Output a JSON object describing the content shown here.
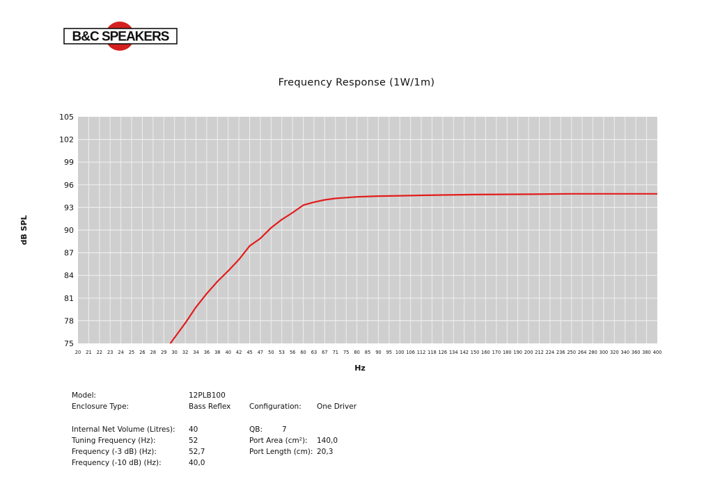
{
  "logo_text": "B&C SPEAKERS",
  "colors": {
    "curve": "#e31b1b",
    "plot_bg": "#cfcfcf",
    "grid": "#eeeeee",
    "logo_red": "#d42020"
  },
  "chart_data": {
    "type": "line",
    "title": "Frequency Response (1W/1m)",
    "xlabel": "Hz",
    "ylabel": "dB SPL",
    "x_scale": "log",
    "grid": true,
    "ylim": [
      75,
      105
    ],
    "yticks": [
      "75",
      "78",
      "81",
      "84",
      "87",
      "90",
      "93",
      "96",
      "99",
      "102",
      "105"
    ],
    "xticks": [
      "20",
      "21",
      "22",
      "23",
      "24",
      "25",
      "26",
      "28",
      "29",
      "30",
      "32",
      "34",
      "36",
      "38",
      "40",
      "42",
      "45",
      "47",
      "50",
      "53",
      "56",
      "60",
      "63",
      "67",
      "71",
      "75",
      "80",
      "85",
      "90",
      "95",
      "100",
      "106",
      "112",
      "118",
      "126",
      "134",
      "142",
      "150",
      "160",
      "170",
      "180",
      "190",
      "200",
      "212",
      "224",
      "236",
      "250",
      "264",
      "280",
      "300",
      "320",
      "340",
      "360",
      "380",
      "400"
    ],
    "series": [
      {
        "x": [
          29.6,
          32,
          34,
          36,
          38,
          40,
          42,
          45,
          47,
          50,
          53,
          56,
          60,
          63,
          67,
          71,
          75,
          80,
          85,
          90,
          100,
          112,
          126,
          150,
          200,
          250,
          300,
          400
        ],
        "y": [
          75,
          77.7,
          79.8,
          81.6,
          83.2,
          84.6,
          86.1,
          87.9,
          88.9,
          90.3,
          91.4,
          92.3,
          93.3,
          93.7,
          94.0,
          94.2,
          94.3,
          94.4,
          94.45,
          94.5,
          94.55,
          94.6,
          94.65,
          94.7,
          94.75,
          94.8,
          94.8,
          94.8
        ]
      }
    ]
  },
  "specs": {
    "model_label": "Model:",
    "model_value": "12PLB100",
    "enclosure_label": "Enclosure Type:",
    "enclosure_value": "Bass Reflex",
    "config_label": "Configuration:",
    "config_value": "One Driver",
    "volume_label": "Internal Net Volume (Litres):",
    "volume_value": "40",
    "qb_label": "QB:",
    "qb_value": "7",
    "tuning_label": "Tuning Frequency (Hz):",
    "tuning_value": "52",
    "port_area_label": "Port Area (cm²):",
    "port_area_value": "140,0",
    "f3_label": "Frequency (-3 dB) (Hz):",
    "f3_value": "52,7",
    "port_length_label": "Port Length (cm):",
    "port_length_value": "20,3",
    "f10_label": "Frequency (-10 dB) (Hz):",
    "f10_value": "40,0"
  }
}
